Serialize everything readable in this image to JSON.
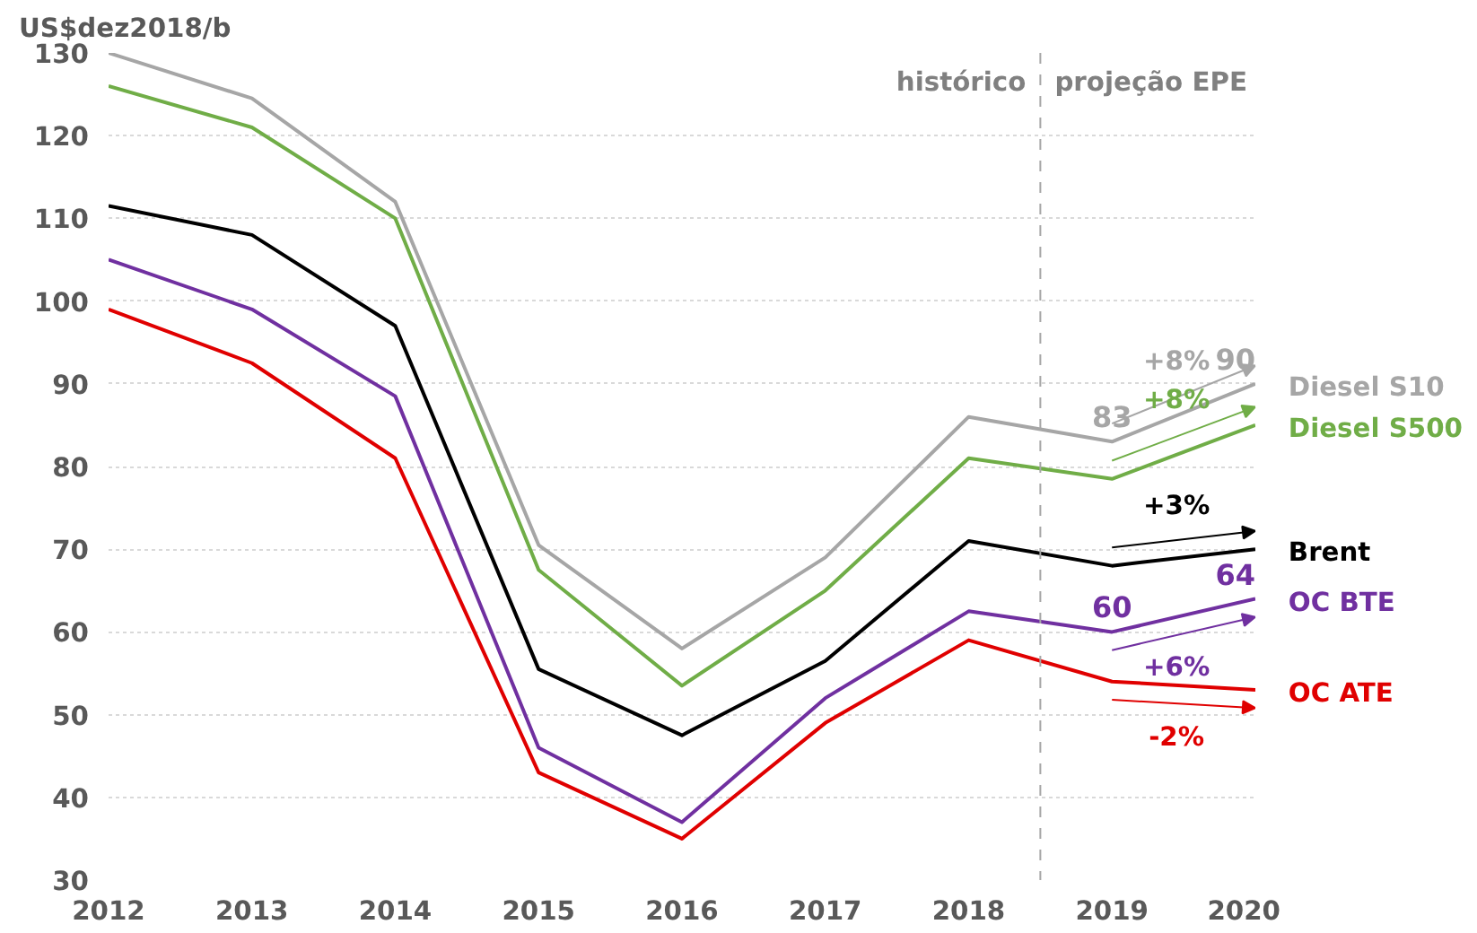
{
  "chart_data": {
    "type": "line",
    "ylabel": "US$dez2018/b",
    "x": [
      2012,
      2013,
      2014,
      2015,
      2016,
      2017,
      2018,
      2019,
      2020
    ],
    "series": [
      {
        "name": "Diesel S10",
        "color": "#a6a6a6",
        "values": [
          130,
          124.5,
          112,
          70.5,
          58,
          69,
          86,
          83,
          90
        ],
        "value_labels": [
          null,
          null,
          null,
          null,
          null,
          null,
          null,
          "83",
          "90"
        ]
      },
      {
        "name": "Diesel S500",
        "color": "#70ad47",
        "values": [
          126,
          121,
          110,
          67.5,
          53.5,
          65,
          81,
          78.5,
          85
        ]
      },
      {
        "name": "Brent",
        "color": "#000000",
        "values": [
          111.5,
          108,
          97,
          55.5,
          47.5,
          56.5,
          71,
          68,
          70
        ]
      },
      {
        "name": "OC BTE",
        "color": "#7030a0",
        "values": [
          105,
          99,
          88.5,
          46,
          37,
          52,
          62.5,
          60,
          64
        ],
        "value_labels": [
          null,
          null,
          null,
          null,
          null,
          null,
          null,
          "60",
          "64"
        ]
      },
      {
        "name": "OC ATE",
        "color": "#e00000",
        "values": [
          99,
          92.5,
          81,
          43,
          35,
          49,
          59,
          54,
          53
        ]
      }
    ],
    "xlim": [
      2012,
      2020
    ],
    "xticks": [
      2012,
      2013,
      2014,
      2015,
      2016,
      2017,
      2018,
      2019,
      2020
    ],
    "ylim": [
      30,
      130
    ],
    "yticks": [
      30,
      40,
      50,
      60,
      70,
      80,
      90,
      100,
      110,
      120,
      130
    ],
    "grid": "y",
    "legend": "right",
    "marker": "none",
    "line_style": "solid",
    "ref_lines": [
      {
        "axis": "x",
        "value": 2018.5,
        "color": "#a6a6a6",
        "line_style": "dashed"
      }
    ],
    "annotations": [
      "+8%",
      "+8%",
      "+3%",
      "+6%",
      "-2%",
      "histórico",
      "projeção EPE"
    ]
  }
}
